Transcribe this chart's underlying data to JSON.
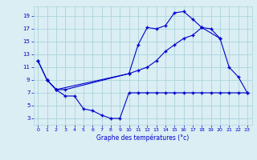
{
  "line1_x": [
    0,
    1,
    2,
    3,
    4,
    5,
    6,
    7,
    8,
    9,
    10,
    11,
    12,
    13,
    14,
    15,
    16,
    17,
    18,
    19,
    20,
    21,
    22,
    23
  ],
  "line1_y": [
    12,
    9,
    7.5,
    6.5,
    6.5,
    4.5,
    4.2,
    3.5,
    3.0,
    3.0,
    7.0,
    7.0,
    7.0,
    7.0,
    7.0,
    7.0,
    7.0,
    7.0,
    7.0,
    7.0,
    7.0,
    7.0,
    7.0,
    7.0
  ],
  "line2_x": [
    0,
    1,
    2,
    10,
    11,
    12,
    13,
    14,
    15,
    16,
    17,
    18,
    20,
    21,
    22,
    23
  ],
  "line2_y": [
    12,
    9,
    7.5,
    10.0,
    14.5,
    17.2,
    17.0,
    17.5,
    19.5,
    19.7,
    18.5,
    17.2,
    15.5,
    11.0,
    9.5,
    7.0
  ],
  "line3_x": [
    1,
    2,
    3,
    10,
    11,
    12,
    13,
    14,
    15,
    16,
    17,
    18,
    19,
    20
  ],
  "line3_y": [
    9,
    7.5,
    7.5,
    10.0,
    10.5,
    11.0,
    12.0,
    13.5,
    14.5,
    15.5,
    16.0,
    17.2,
    17.0,
    15.5
  ],
  "color": "#0000cd",
  "bg_color": "#daeef3",
  "grid_color": "#aad4dc",
  "xlabel": "Graphe des températures (°c)",
  "yticks": [
    3,
    5,
    7,
    9,
    11,
    13,
    15,
    17,
    19
  ],
  "xticks": [
    0,
    1,
    2,
    3,
    4,
    5,
    6,
    7,
    8,
    9,
    10,
    11,
    12,
    13,
    14,
    15,
    16,
    17,
    18,
    19,
    20,
    21,
    22,
    23
  ],
  "ylim": [
    2.0,
    20.5
  ],
  "xlim": [
    -0.5,
    23.5
  ]
}
